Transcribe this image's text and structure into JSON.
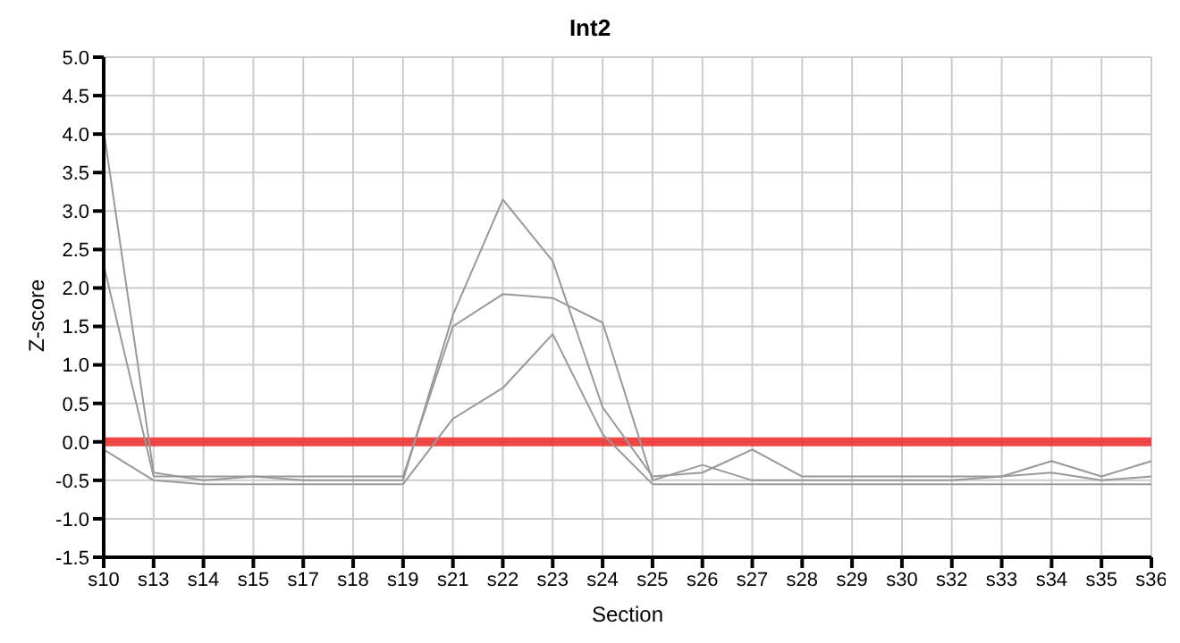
{
  "chart_data": {
    "type": "line",
    "title": "Int2",
    "xlabel": "Section",
    "ylabel": "Z-score",
    "categories": [
      "s10",
      "s13",
      "s14",
      "s15",
      "s17",
      "s18",
      "s19",
      "s21",
      "s22",
      "s23",
      "s24",
      "s25",
      "s26",
      "s27",
      "s28",
      "s29",
      "s30",
      "s32",
      "s33",
      "s34",
      "s35",
      "s36"
    ],
    "series": [
      {
        "color": "#999999",
        "values": [
          4.05,
          -0.4,
          -0.5,
          -0.45,
          -0.5,
          -0.5,
          -0.5,
          1.65,
          3.15,
          2.35,
          0.45,
          -0.45,
          -0.4,
          -0.1,
          -0.45,
          -0.45,
          -0.45,
          -0.45,
          -0.45,
          -0.25,
          -0.45,
          -0.25
        ]
      },
      {
        "color": "#999999",
        "values": [
          2.3,
          -0.45,
          -0.45,
          -0.45,
          -0.45,
          -0.45,
          -0.45,
          1.5,
          1.92,
          1.87,
          1.55,
          -0.5,
          -0.3,
          -0.5,
          -0.5,
          -0.5,
          -0.5,
          -0.5,
          -0.45,
          -0.4,
          -0.5,
          -0.45
        ]
      },
      {
        "color": "#999999",
        "values": [
          -0.1,
          -0.5,
          -0.55,
          -0.55,
          -0.55,
          -0.55,
          -0.55,
          0.3,
          0.7,
          1.4,
          0.1,
          -0.55,
          -0.55,
          -0.55,
          -0.55,
          -0.55,
          -0.55,
          -0.55,
          -0.55,
          -0.55,
          -0.55,
          -0.55
        ]
      }
    ],
    "ylim": [
      -1.5,
      5
    ],
    "yticks": [
      {
        "value": -1.5,
        "label": "-1.5"
      },
      {
        "value": -1,
        "label": "-1.0"
      },
      {
        "value": -0.5,
        "label": "-0.5"
      },
      {
        "value": 0,
        "label": "0.0"
      },
      {
        "value": 0.5,
        "label": "0.5"
      },
      {
        "value": 1,
        "label": "1.0"
      },
      {
        "value": 1.5,
        "label": "1.5"
      },
      {
        "value": 2,
        "label": "2.0"
      },
      {
        "value": 2.5,
        "label": "2.5"
      },
      {
        "value": 3,
        "label": "3.0"
      },
      {
        "value": 3.5,
        "label": "3.5"
      },
      {
        "value": 4,
        "label": "4.0"
      },
      {
        "value": 4.5,
        "label": "4.5"
      },
      {
        "value": 5,
        "label": "5.0"
      }
    ],
    "ref_lines": [
      {
        "axis": "y",
        "value": 0,
        "color": "#ee3333"
      }
    ],
    "grid": true,
    "legend": false,
    "marker": "none",
    "line_style": "solid"
  }
}
